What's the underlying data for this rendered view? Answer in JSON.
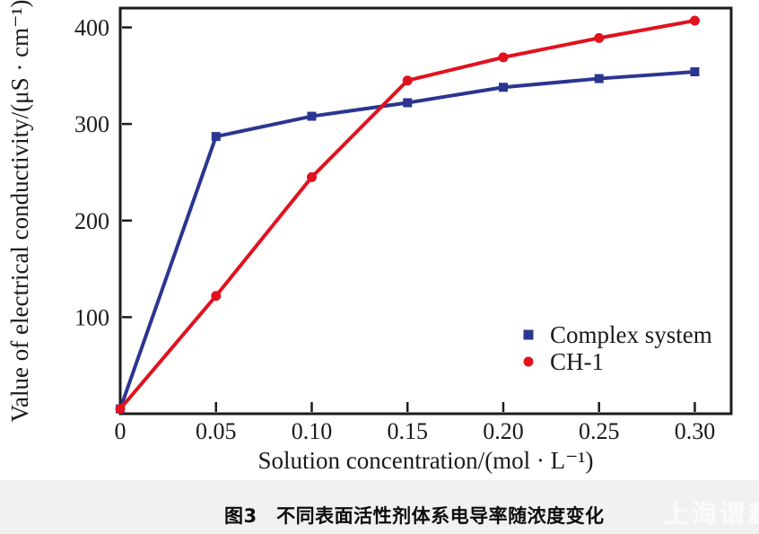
{
  "figure": {
    "caption": "图3　不同表面活性剂体系电导率随浓度变化",
    "watermark": "上海谓鑫"
  },
  "chart_data": {
    "type": "line",
    "title": "",
    "xlabel": "Solution concentration/(mol · L⁻¹)",
    "ylabel": "Value of electrical conductivity/(μS · cm⁻¹)",
    "xlim": [
      0,
      0.319
    ],
    "ylim": [
      0,
      420
    ],
    "x_ticks": [
      0,
      0.05,
      0.1,
      0.15,
      0.2,
      0.25,
      0.3
    ],
    "x_tick_labels": [
      "0",
      "0.05",
      "0.10",
      "0.15",
      "0.20",
      "0.25",
      "0.30"
    ],
    "y_ticks": [
      100,
      200,
      300,
      400
    ],
    "y_tick_labels": [
      "100",
      "200",
      "300",
      "400"
    ],
    "grid": false,
    "legend_position": "inside-lower-right",
    "x": [
      0,
      0.05,
      0.1,
      0.15,
      0.2,
      0.25,
      0.3
    ],
    "series": [
      {
        "name": "Complex system",
        "marker": "square",
        "color": "#2b3590",
        "values": [
          5,
          287,
          308,
          322,
          338,
          347,
          354
        ]
      },
      {
        "name": "CH-1",
        "marker": "circle",
        "color": "#e0121f",
        "values": [
          5,
          122,
          245,
          345,
          369,
          389,
          407
        ]
      }
    ],
    "colors": {
      "frame": "#1c1c1c",
      "text": "#1a1a1a",
      "caption_bg": "#f1f1f1",
      "watermark_text": "#fbfbfb"
    }
  }
}
